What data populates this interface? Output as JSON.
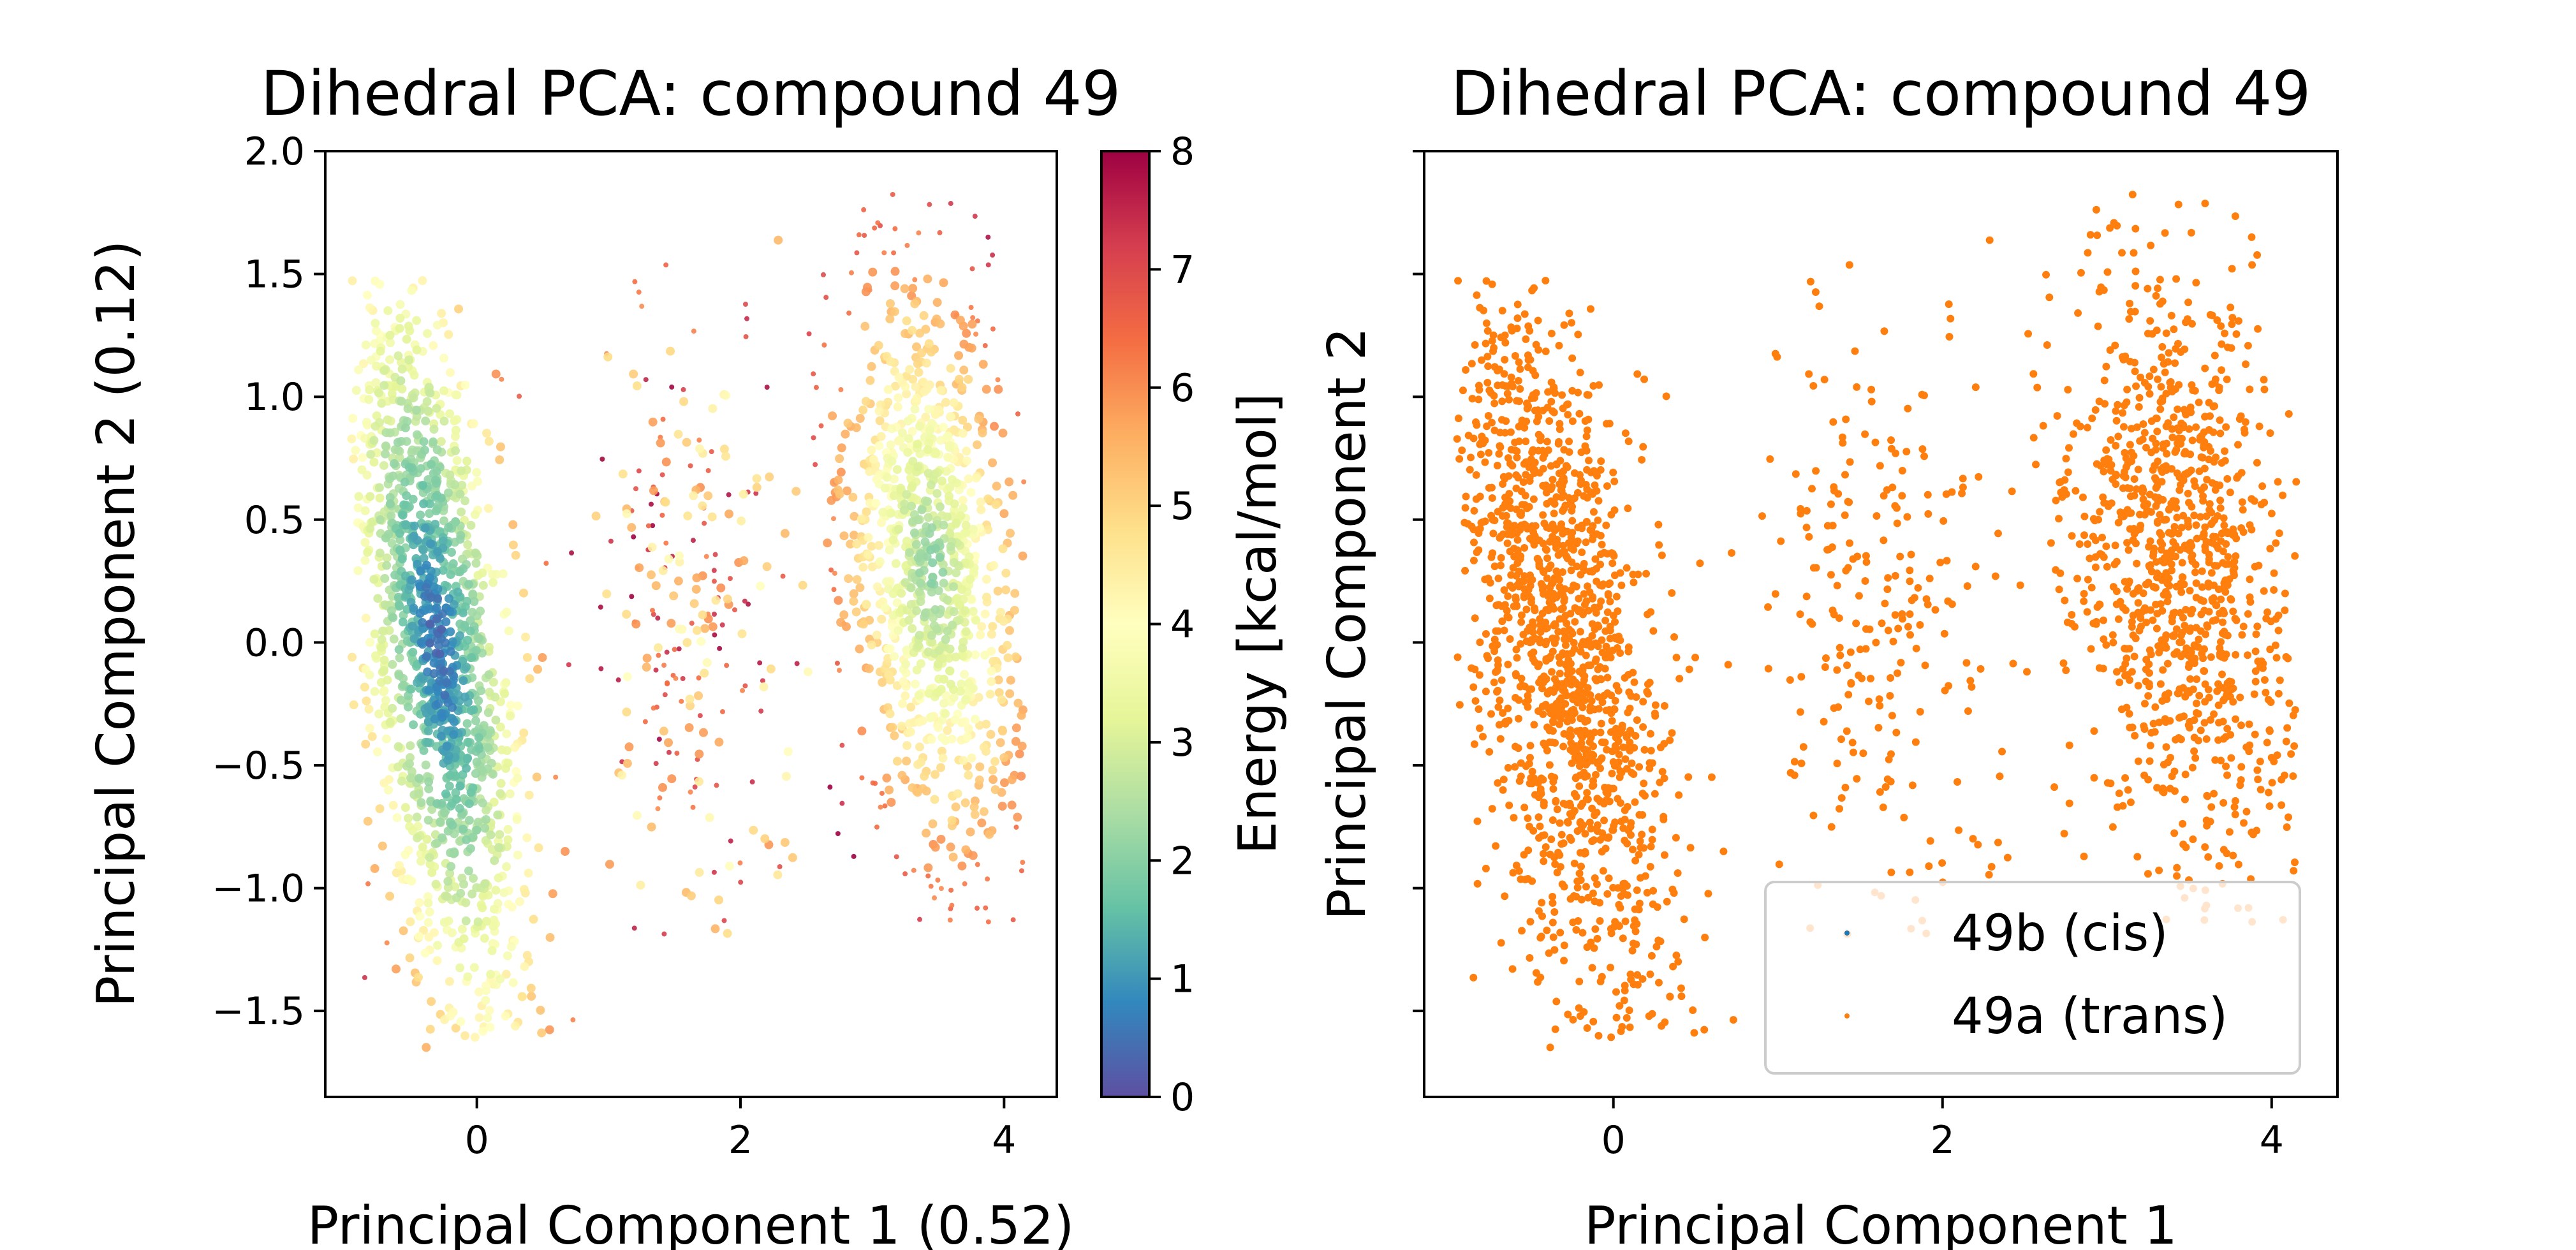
{
  "chart_data": [
    {
      "type": "scatter",
      "title": "Dihedral PCA: compound 49",
      "xlabel": "Principal Component 1 (0.52)",
      "ylabel": "Principal Component 2 (0.12)",
      "xlim": [
        -1.15,
        4.4
      ],
      "ylim": [
        -1.85,
        2.0
      ],
      "xticks": [
        0,
        2,
        4
      ],
      "xtick_labels": [
        "0",
        "2",
        "4"
      ],
      "yticks": [
        -1.5,
        -1.0,
        -0.5,
        0.0,
        0.5,
        1.0,
        1.5,
        2.0
      ],
      "ytick_labels": [
        "−1.5",
        "−1.0",
        "−0.5",
        "0.0",
        "0.5",
        "1.0",
        "1.5",
        "2.0"
      ],
      "color_by": "energy",
      "colormap": "Spectral_r",
      "colorbar": {
        "label": "Energy [kcal/mol]",
        "range": [
          0,
          8
        ],
        "ticks": [
          0,
          1,
          2,
          3,
          4,
          5,
          6,
          7,
          8
        ],
        "tick_labels": [
          "0",
          "1",
          "2",
          "3",
          "4",
          "5",
          "6",
          "7",
          "8"
        ],
        "colors": [
          "#5e4fa2",
          "#3288bd",
          "#66c2a5",
          "#abdda4",
          "#e6f598",
          "#ffffbf",
          "#fee08b",
          "#fdae61",
          "#f46d43",
          "#d53e4f",
          "#9e0142"
        ]
      },
      "clusters": [
        {
          "center": [
            -0.3,
            0.0
          ],
          "spread": [
            0.28,
            0.75
          ],
          "tilt": -0.22,
          "x_range": [
            -0.95,
            0.85
          ],
          "y_range": [
            -1.65,
            1.48
          ],
          "core_energy": 0.3
        },
        {
          "center": [
            1.6,
            0.1
          ],
          "spread": [
            0.45,
            0.6
          ],
          "tilt": 0.0,
          "x_range": [
            0.9,
            2.55
          ],
          "y_range": [
            -1.3,
            1.65
          ],
          "core_energy": 5.5
        },
        {
          "center": [
            3.45,
            0.3
          ],
          "spread": [
            0.35,
            0.6
          ],
          "tilt": -0.18,
          "x_range": [
            2.5,
            4.15
          ],
          "y_range": [
            -1.15,
            1.85
          ],
          "core_energy": 2.0
        }
      ]
    },
    {
      "type": "scatter",
      "title": "Dihedral PCA: compound 49",
      "xlabel": "Principal Component 1",
      "ylabel": "Principal Component 2",
      "xlim": [
        -1.15,
        4.4
      ],
      "ylim": [
        -1.85,
        2.0
      ],
      "xticks": [
        0,
        2,
        4
      ],
      "xtick_labels": [
        "0",
        "2",
        "4"
      ],
      "yticks": [
        -1.5,
        -1.0,
        -0.5,
        0.0,
        0.5,
        1.0,
        1.5,
        2.0
      ],
      "legend_position": "lower right",
      "series": [
        {
          "name": "49b (cis)",
          "color": "#1f77b4"
        },
        {
          "name": "49a (trans)",
          "color": "#ff7f0e"
        }
      ]
    }
  ]
}
